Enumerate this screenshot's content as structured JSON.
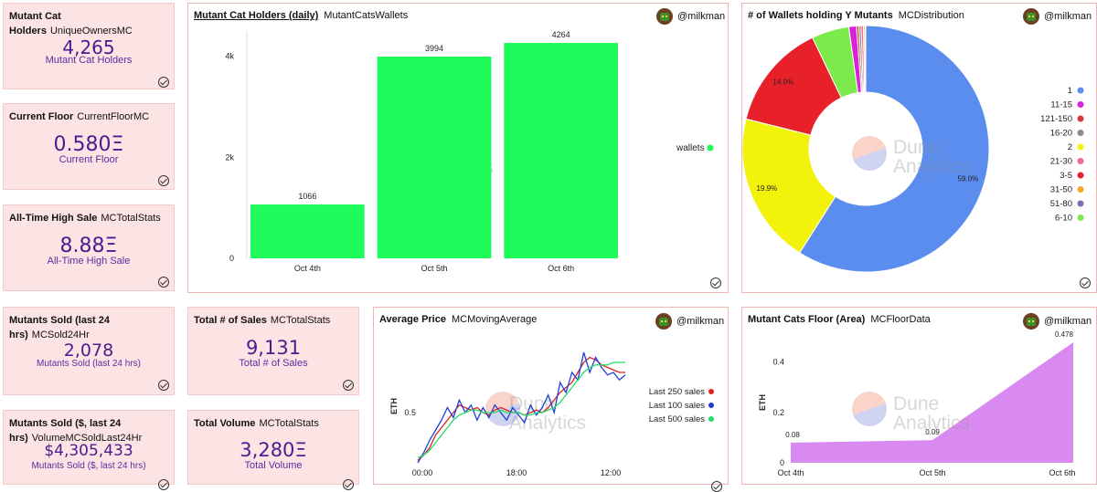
{
  "user": "@milkman",
  "watermark": {
    "line1": "Dune",
    "line2": "Analytics"
  },
  "cards": {
    "holders": {
      "title": "Mutant Cat Holders",
      "query": "UniqueOwnersMC",
      "value": "4,265",
      "label": "Mutant Cat Holders"
    },
    "floor": {
      "title": "Current Floor",
      "query": "CurrentFloorMC",
      "value": "0.580Ξ",
      "label": "Current Floor"
    },
    "ath": {
      "title": "All-Time High Sale",
      "query": "MCTotalStats",
      "value": "8.88Ξ",
      "label": "All-Time High Sale"
    },
    "sold24": {
      "title": "Mutants Sold (last 24 hrs)",
      "query": "MCSold24Hr",
      "value": "2,078",
      "label": "Mutants Sold (last 24 hrs)"
    },
    "soldusd": {
      "title": "Mutants Sold ($, last 24 hrs)",
      "query": "VolumeMCSoldLast24Hr",
      "value": "$4,305,433",
      "label": "Mutants Sold ($, last 24 hrs)"
    },
    "sales": {
      "title": "Total # of Sales",
      "query": "MCTotalStats",
      "value": "9,131",
      "label": "Total # of Sales"
    },
    "volume": {
      "title": "Total Volume",
      "query": "MCTotalStats",
      "value": "3,280Ξ",
      "label": "Total Volume"
    }
  },
  "panels": {
    "holders_chart": {
      "title": "Mutant Cat Holders (daily)",
      "query": "MutantCatsWallets"
    },
    "distribution": {
      "title": "# of Wallets holding Y Mutants",
      "query": "MCDistribution"
    },
    "avg_price": {
      "title": "Average Price",
      "query": "MCMovingAverage"
    },
    "floor_area": {
      "title": "Mutant Cats Floor (Area)",
      "query": "MCFloorData"
    }
  },
  "chart_data": [
    {
      "type": "bar",
      "title": "Mutant Cat Holders (daily)",
      "categories": [
        "Oct 4th",
        "Oct 5th",
        "Oct 6th"
      ],
      "series": [
        {
          "name": "wallets",
          "values": [
            1066,
            3994,
            4264
          ],
          "color": "#1ffb5a"
        }
      ],
      "yticks": [
        "0",
        "2k",
        "4k"
      ],
      "ylim": [
        0,
        4500
      ],
      "legend": "right"
    },
    {
      "type": "pie",
      "title": "# of Wallets holding Y Mutants",
      "donut": true,
      "slices": [
        {
          "label": "1",
          "value": 59.0,
          "color": "#5b8def"
        },
        {
          "label": "2",
          "value": 19.9,
          "color": "#f2f20a"
        },
        {
          "label": "3-5",
          "value": 14.0,
          "color": "#e8202a"
        },
        {
          "label": "6-10",
          "value": 4.9,
          "color": "#7bea4a"
        },
        {
          "label": "11-15",
          "value": 1.0,
          "color": "#d822d8"
        },
        {
          "label": "121-150",
          "value": 0.3,
          "color": "#d83a3a"
        },
        {
          "label": "16-20",
          "value": 0.3,
          "color": "#8a8a8a"
        },
        {
          "label": "21-30",
          "value": 0.3,
          "color": "#f06a8a"
        },
        {
          "label": "31-50",
          "value": 0.2,
          "color": "#f5a623"
        },
        {
          "label": "51-80",
          "value": 0.1,
          "color": "#7a6fb0"
        }
      ],
      "legend_order": [
        "1",
        "11-15",
        "121-150",
        "16-20",
        "2",
        "21-30",
        "3-5",
        "31-50",
        "51-80",
        "6-10"
      ],
      "shown_labels": [
        "59.0%",
        "19.9%",
        "14.0%"
      ],
      "legend": "right"
    },
    {
      "type": "line",
      "title": "Average Price",
      "ylabel": "ETH",
      "yticks": [
        {
          "label": "0.5",
          "value": 0.5
        }
      ],
      "ylim": [
        0.3,
        0.78
      ],
      "xticks": [
        "00:00",
        "18:00",
        "12:00"
      ],
      "series": [
        {
          "name": "Last 250 sales",
          "color": "#e02020",
          "values": [
            0.31,
            0.33,
            0.36,
            0.41,
            0.44,
            0.47,
            0.5,
            0.53,
            0.52,
            0.51,
            0.52,
            0.5,
            0.49,
            0.51,
            0.52,
            0.51,
            0.5,
            0.5,
            0.49,
            0.5,
            0.51,
            0.5,
            0.52,
            0.55,
            0.58,
            0.6,
            0.62,
            0.66,
            0.7,
            0.72,
            0.71,
            0.69,
            0.68,
            0.67,
            0.66,
            0.66
          ]
        },
        {
          "name": "Last 100 sales",
          "color": "#1b3fd8",
          "values": [
            0.3,
            0.34,
            0.39,
            0.43,
            0.47,
            0.52,
            0.48,
            0.55,
            0.5,
            0.53,
            0.47,
            0.52,
            0.48,
            0.53,
            0.5,
            0.47,
            0.52,
            0.49,
            0.46,
            0.53,
            0.49,
            0.52,
            0.57,
            0.5,
            0.62,
            0.58,
            0.66,
            0.63,
            0.74,
            0.66,
            0.72,
            0.68,
            0.65,
            0.66,
            0.63,
            0.65
          ]
        },
        {
          "name": "Last 500 sales",
          "color": "#22dd66",
          "values": [
            0.32,
            0.33,
            0.35,
            0.38,
            0.41,
            0.44,
            0.47,
            0.49,
            0.5,
            0.51,
            0.51,
            0.5,
            0.5,
            0.5,
            0.51,
            0.5,
            0.5,
            0.5,
            0.49,
            0.49,
            0.5,
            0.5,
            0.51,
            0.52,
            0.54,
            0.57,
            0.6,
            0.63,
            0.66,
            0.68,
            0.69,
            0.69,
            0.69,
            0.7,
            0.7,
            0.7
          ]
        }
      ],
      "legend": "right"
    },
    {
      "type": "area",
      "title": "Mutant Cats Floor (Area)",
      "categories": [
        "Oct 4th",
        "Oct 5th",
        "Oct 6th"
      ],
      "values": [
        0.08,
        0.09,
        0.478
      ],
      "data_labels": [
        "0.08",
        "0.09",
        "0.478"
      ],
      "ylabel": "ETH",
      "yticks": [
        {
          "label": "0",
          "value": 0
        },
        {
          "label": "0.2",
          "value": 0.2
        },
        {
          "label": "0.4",
          "value": 0.4
        }
      ],
      "ylim": [
        0,
        0.5
      ],
      "color": "#d98af0"
    }
  ]
}
